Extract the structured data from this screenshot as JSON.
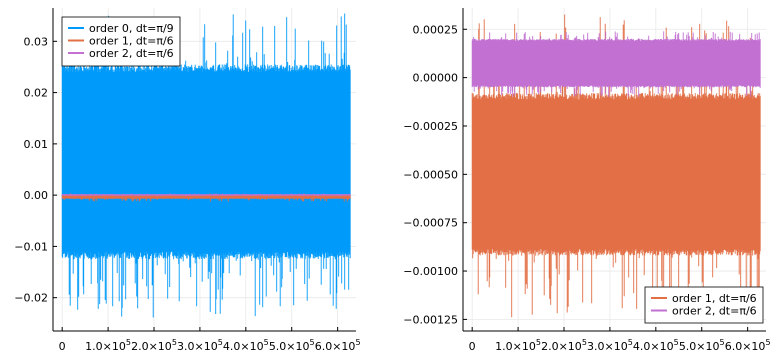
{
  "chart_data": [
    {
      "type": "line",
      "title": "",
      "xlabel": "",
      "ylabel": "",
      "xlim": [
        -20000,
        640000
      ],
      "ylim": [
        -0.0265,
        0.0365
      ],
      "x_ticks": [
        0,
        100000,
        200000,
        300000,
        400000,
        500000,
        600000
      ],
      "x_tick_labels": [
        {
          "base": "0",
          "exp": ""
        },
        {
          "base": "1.0×10",
          "exp": "5"
        },
        {
          "base": "2.0×10",
          "exp": "5"
        },
        {
          "base": "3.0×10",
          "exp": "5"
        },
        {
          "base": "4.0×10",
          "exp": "5"
        },
        {
          "base": "5.0×10",
          "exp": "5"
        },
        {
          "base": "6.0×10",
          "exp": "5"
        }
      ],
      "y_ticks": [
        -0.02,
        -0.01,
        0.0,
        0.01,
        0.02,
        0.03
      ],
      "y_tick_labels": [
        "−0.02",
        "−0.01",
        "0.00",
        "0.01",
        "0.02",
        "0.03"
      ],
      "grid": true,
      "legend_position": "top-left",
      "series": [
        {
          "name": "order 0, dt=π/9",
          "color": "#009AFA",
          "x_range": [
            0,
            628000
          ],
          "band_lo": -0.0125,
          "band_hi": 0.0255,
          "spike_lo": -0.024,
          "spike_hi": 0.0355
        },
        {
          "name": "order 1, dt=π/6",
          "color": "#E26F46",
          "x_range": [
            0,
            628000
          ],
          "band_lo": -0.0007,
          "band_hi": 0.0001,
          "spike_lo": -0.0013,
          "spike_hi": 0.0003
        },
        {
          "name": "order 2, dt=π/6",
          "color": "#C271D2",
          "x_range": [
            0,
            628000
          ],
          "band_lo": -0.0001,
          "band_hi": 0.0002,
          "spike_lo": -0.0002,
          "spike_hi": 0.0003
        }
      ]
    },
    {
      "type": "line",
      "title": "",
      "xlabel": "",
      "ylabel": "",
      "xlim": [
        -20000,
        640000
      ],
      "ylim": [
        -0.00131,
        0.00036
      ],
      "x_ticks": [
        0,
        100000,
        200000,
        300000,
        400000,
        500000,
        600000
      ],
      "x_tick_labels": [
        {
          "base": "0",
          "exp": ""
        },
        {
          "base": "1.0×10",
          "exp": "5"
        },
        {
          "base": "2.0×10",
          "exp": "5"
        },
        {
          "base": "3.0×10",
          "exp": "5"
        },
        {
          "base": "4.0×10",
          "exp": "5"
        },
        {
          "base": "5.0×10",
          "exp": "5"
        },
        {
          "base": "6.0×10",
          "exp": "5"
        }
      ],
      "y_ticks": [
        -0.00125,
        -0.001,
        -0.00075,
        -0.0005,
        -0.00025,
        0.0,
        0.00025
      ],
      "y_tick_labels": [
        "−0.00125",
        "−0.00100",
        "−0.00075",
        "−0.00050",
        "−0.00025",
        "0.00000",
        "0.00025"
      ],
      "grid": true,
      "legend_position": "bottom-right",
      "series": [
        {
          "name": "order 1, dt=π/6",
          "color": "#E26F46",
          "x_range": [
            0,
            628000
          ],
          "band_lo": -0.00092,
          "band_hi": -8e-05,
          "spike_lo": -0.00126,
          "spike_hi": 0.00033
        },
        {
          "name": "order 2, dt=π/6",
          "color": "#C271D2",
          "x_range": [
            0,
            628000
          ],
          "band_lo": -5e-05,
          "band_hi": 0.0002,
          "spike_lo": -0.0001,
          "spike_hi": 0.00024
        }
      ]
    }
  ]
}
